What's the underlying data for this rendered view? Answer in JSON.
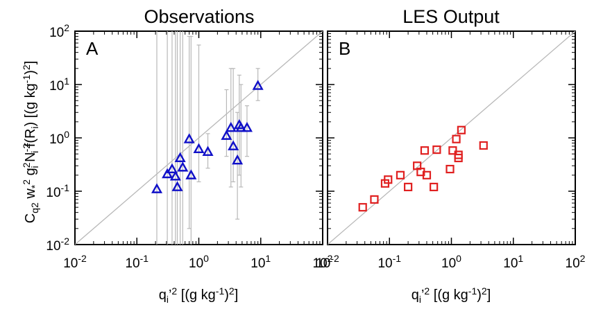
{
  "chart_data": [
    {
      "panel": "A",
      "type": "scatter",
      "title": "Observations",
      "xlabel": "q_i'^2 [(g kg^-1)^2]",
      "ylabel": "C_q2 w*^2 g_i^2 N_i^-2 f(R_i) [(g kg^-1)^2]",
      "xscale": "log",
      "yscale": "log",
      "xlim": [
        0.01,
        100
      ],
      "ylim": [
        0.01,
        100
      ],
      "x_tick_labels": [
        "10-2",
        "10-1",
        "100",
        "101",
        "102"
      ],
      "y_tick_labels": [
        "10-2",
        "10-1",
        "100",
        "101",
        "102"
      ],
      "one_to_one_line": true,
      "marker": "triangle",
      "color": "#1010c8",
      "errorbar_color": "#b8b8b8",
      "points": [
        {
          "x": 0.21,
          "y": 0.11,
          "ylo": 0.01,
          "yhi": 100
        },
        {
          "x": 0.31,
          "y": 0.21,
          "ylo": 0.01,
          "yhi": 100
        },
        {
          "x": 0.37,
          "y": 0.26,
          "ylo": 0.01,
          "yhi": 100
        },
        {
          "x": 0.42,
          "y": 0.19,
          "ylo": 0.01,
          "yhi": 100
        },
        {
          "x": 0.45,
          "y": 0.12,
          "ylo": 0.01,
          "yhi": 100
        },
        {
          "x": 0.5,
          "y": 0.42,
          "ylo": 0.01,
          "yhi": 100
        },
        {
          "x": 0.55,
          "y": 0.28,
          "ylo": 0.01,
          "yhi": 100
        },
        {
          "x": 0.7,
          "y": 0.95,
          "ylo": 0.02,
          "yhi": 80
        },
        {
          "x": 0.75,
          "y": 0.2,
          "ylo": 0.01,
          "yhi": 80
        },
        {
          "x": 1.0,
          "y": 0.62,
          "ylo": 0.15,
          "yhi": 55
        },
        {
          "x": 1.4,
          "y": 0.55,
          "ylo": 0.27,
          "yhi": 1.2
        },
        {
          "x": 2.8,
          "y": 1.1,
          "ylo": 0.45,
          "yhi": 8
        },
        {
          "x": 3.3,
          "y": 1.55,
          "ylo": 0.12,
          "yhi": 20
        },
        {
          "x": 3.6,
          "y": 0.7,
          "ylo": 0.15,
          "yhi": 20
        },
        {
          "x": 4.2,
          "y": 0.38,
          "ylo": 0.03,
          "yhi": 3
        },
        {
          "x": 4.5,
          "y": 1.75,
          "ylo": 0.2,
          "yhi": 15
        },
        {
          "x": 4.8,
          "y": 1.55,
          "ylo": 0.12,
          "yhi": 10
        },
        {
          "x": 6.0,
          "y": 1.55,
          "ylo": 0.45,
          "yhi": 4
        },
        {
          "x": 9.0,
          "y": 9.5,
          "ylo": 5,
          "yhi": 20
        }
      ]
    },
    {
      "panel": "B",
      "type": "scatter",
      "title": "LES Output",
      "xlabel": "q_i'^2 [(g kg^-1)^2]",
      "xscale": "log",
      "yscale": "log",
      "xlim": [
        0.01,
        100
      ],
      "ylim": [
        0.01,
        100
      ],
      "x_tick_labels": [
        "10-2",
        "10-1",
        "100",
        "101",
        "102"
      ],
      "one_to_one_line": true,
      "marker": "square",
      "color": "#e02020",
      "points": [
        {
          "x": 0.037,
          "y": 0.05
        },
        {
          "x": 0.057,
          "y": 0.07
        },
        {
          "x": 0.085,
          "y": 0.14
        },
        {
          "x": 0.095,
          "y": 0.165
        },
        {
          "x": 0.15,
          "y": 0.2
        },
        {
          "x": 0.2,
          "y": 0.12
        },
        {
          "x": 0.28,
          "y": 0.3
        },
        {
          "x": 0.32,
          "y": 0.23
        },
        {
          "x": 0.37,
          "y": 0.58
        },
        {
          "x": 0.4,
          "y": 0.2
        },
        {
          "x": 0.52,
          "y": 0.12
        },
        {
          "x": 0.58,
          "y": 0.6
        },
        {
          "x": 0.95,
          "y": 0.26
        },
        {
          "x": 1.05,
          "y": 0.58
        },
        {
          "x": 1.2,
          "y": 0.95
        },
        {
          "x": 1.3,
          "y": 0.48
        },
        {
          "x": 1.3,
          "y": 0.42
        },
        {
          "x": 1.45,
          "y": 1.4
        },
        {
          "x": 3.3,
          "y": 0.72
        }
      ]
    }
  ]
}
